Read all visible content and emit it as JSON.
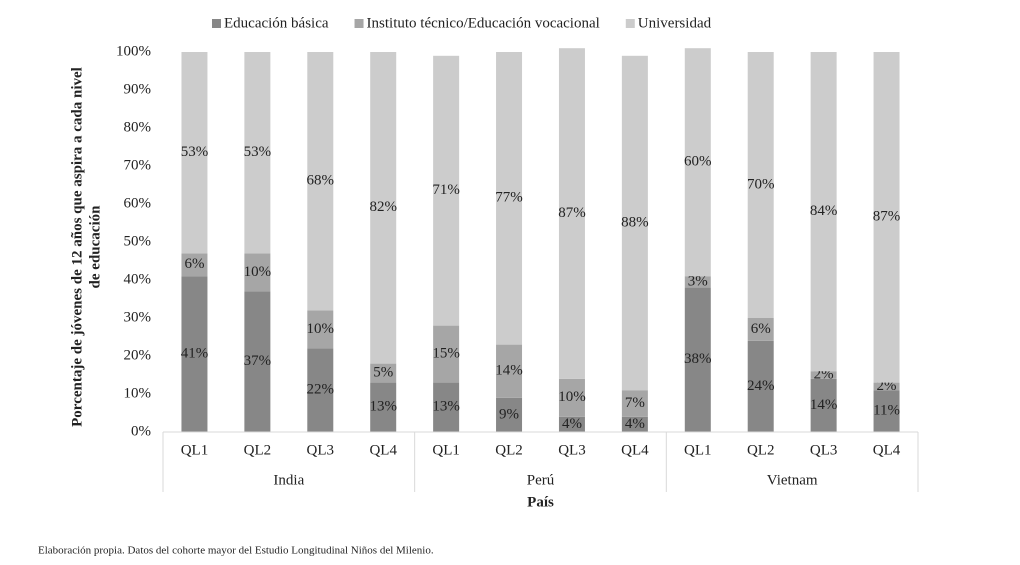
{
  "chart_data": {
    "type": "stacked-bar",
    "categories": [
      "QL1",
      "QL2",
      "QL3",
      "QL4",
      "QL1",
      "QL2",
      "QL3",
      "QL4",
      "QL1",
      "QL2",
      "QL3",
      "QL4"
    ],
    "groups": [
      "India",
      "Perú",
      "Vietnam"
    ],
    "x_label": "País",
    "y_label": [
      "Porcentaje de jóvenes de 12 años que aspira a cada nivel",
      "de educación"
    ],
    "ylim": [
      0,
      100
    ],
    "yticks": [
      {
        "value": 0,
        "label": "0%"
      },
      {
        "value": 10,
        "label": "10%"
      },
      {
        "value": 20,
        "label": "20%"
      },
      {
        "value": 30,
        "label": "30%"
      },
      {
        "value": 40,
        "label": "40%"
      },
      {
        "value": 50,
        "label": "50%"
      },
      {
        "value": 60,
        "label": "60%"
      },
      {
        "value": 70,
        "label": "70%"
      },
      {
        "value": 80,
        "label": "80%"
      },
      {
        "value": 90,
        "label": "90%"
      },
      {
        "value": 100,
        "label": "100%"
      }
    ],
    "series": [
      {
        "name": "Educación básica",
        "color": "#878787",
        "values": [
          41,
          37,
          22,
          13,
          13,
          9,
          4,
          4,
          38,
          24,
          14,
          11
        ],
        "value_labels": [
          "41%",
          "37%",
          "22%",
          "13%",
          "13%",
          "9%",
          "4%",
          "4%",
          "38%",
          "24%",
          "14%",
          "11%"
        ]
      },
      {
        "name": "Instituto técnico/Educación vocacional",
        "color": "#a6a6a6",
        "values": [
          6,
          10,
          10,
          5,
          15,
          14,
          10,
          7,
          3,
          6,
          2,
          2
        ],
        "value_labels": [
          "6%",
          "10%",
          "10%",
          "5%",
          "15%",
          "14%",
          "10%",
          "7%",
          "3%",
          "6%",
          "2%",
          "2%"
        ]
      },
      {
        "name": "Universidad",
        "color": "#cccccc",
        "values": [
          53,
          53,
          68,
          82,
          71,
          77,
          87,
          88,
          60,
          70,
          84,
          87
        ],
        "value_labels": [
          "53%",
          "53%",
          "68%",
          "82%",
          "71%",
          "77%",
          "87%",
          "88%",
          "60%",
          "70%",
          "84%",
          "87%"
        ]
      }
    ],
    "source": "Elaboración propia. Datos del cohorte mayor del Estudio Longitudinal Niños del Milenio."
  }
}
